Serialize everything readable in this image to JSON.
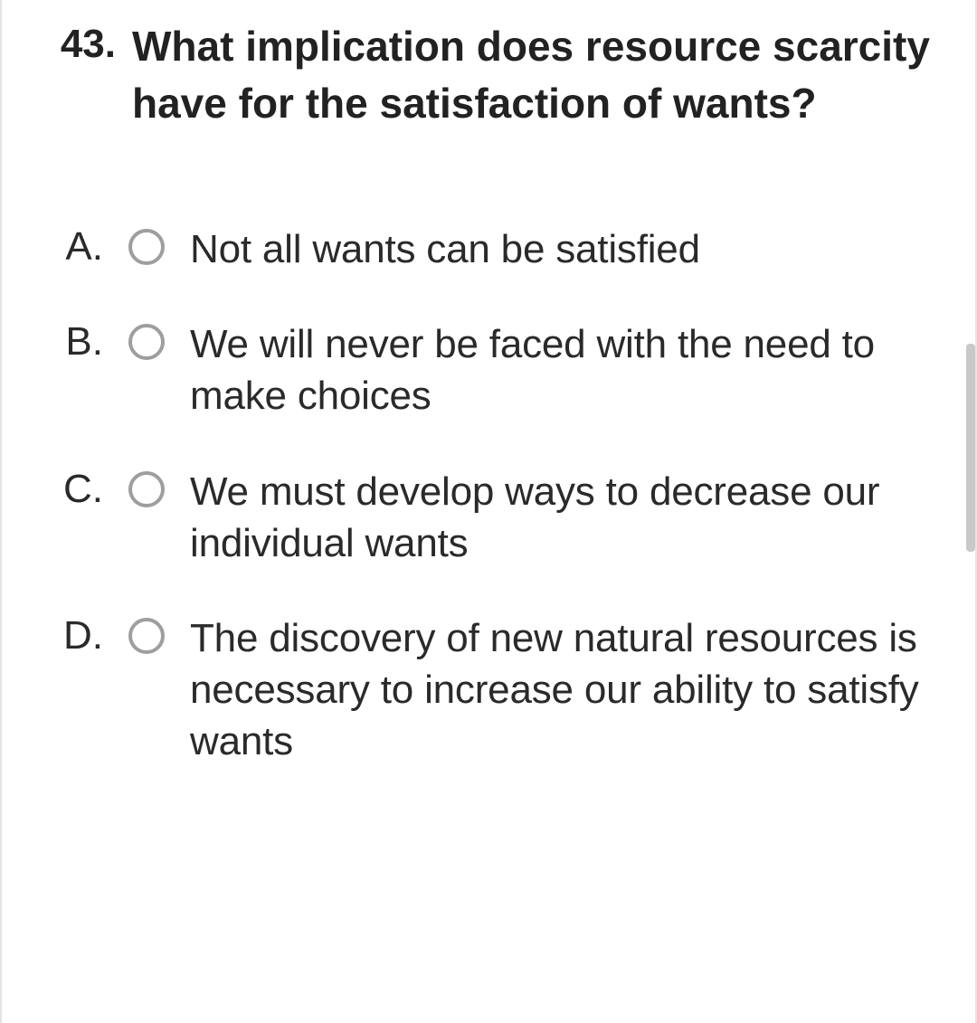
{
  "question": {
    "number": "43.",
    "text": "What implication does resource scarcity have for the satisfaction of wants?"
  },
  "options": [
    {
      "letter": "A.",
      "text": "Not all wants can be satisfied"
    },
    {
      "letter": "B.",
      "text": "We will never be faced with the need to make choices"
    },
    {
      "letter": "C.",
      "text": "We must develop ways to decrease our individual wants"
    },
    {
      "letter": "D.",
      "text": "The discovery of new natural resources is necessary to increase our ability to satisfy wants"
    }
  ],
  "colors": {
    "text": "#2a2a2a",
    "border": "#e5e5e5",
    "radio_border": "#9e9e9e",
    "scrollbar": "#c9c9c9",
    "background": "#ffffff"
  }
}
